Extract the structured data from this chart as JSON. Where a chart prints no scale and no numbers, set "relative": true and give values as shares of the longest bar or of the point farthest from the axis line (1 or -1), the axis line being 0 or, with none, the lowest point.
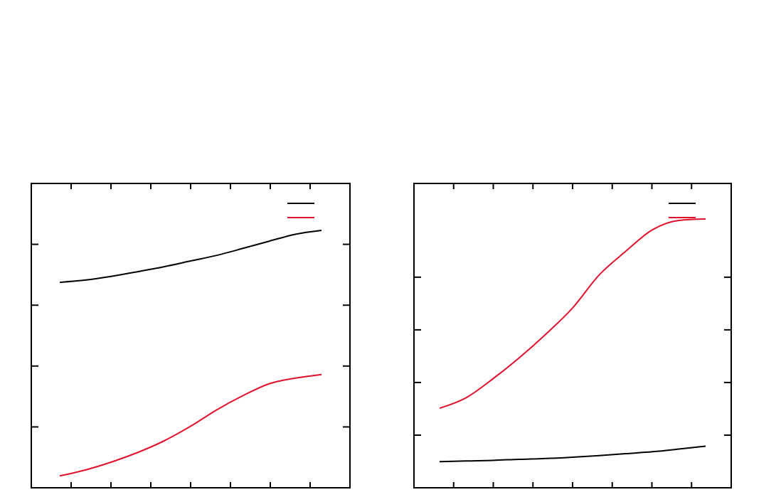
{
  "chart_data": [
    {
      "type": "line",
      "relative": true,
      "categories": [
        null,
        null,
        null,
        null,
        null,
        null,
        null,
        null,
        null,
        null,
        null
      ],
      "series": [
        {
          "color": "#000000",
          "values": [
            0.798,
            0.807,
            0.822,
            0.84,
            0.859,
            0.881,
            0.903,
            0.93,
            0.958,
            0.985,
            1
          ]
        },
        {
          "color": "#e0102a",
          "values": [
            0.046,
            0.07,
            0.101,
            0.138,
            0.183,
            0.239,
            0.303,
            0.358,
            0.404,
            0.426,
            0.44
          ]
        }
      ]
    },
    {
      "type": "line",
      "relative": true,
      "categories": [
        null,
        null,
        null,
        null,
        null,
        null,
        null,
        null,
        null,
        null,
        null
      ],
      "series": [
        {
          "color": "#000000",
          "values": [
            0.097,
            0.1,
            0.102,
            0.106,
            0.109,
            0.114,
            0.12,
            0.127,
            0.134,
            0.144,
            0.155
          ]
        },
        {
          "color": "#e0102a",
          "values": [
            0.296,
            0.335,
            0.405,
            0.484,
            0.572,
            0.669,
            0.792,
            0.88,
            0.96,
            0.995,
            1
          ]
        }
      ]
    }
  ]
}
